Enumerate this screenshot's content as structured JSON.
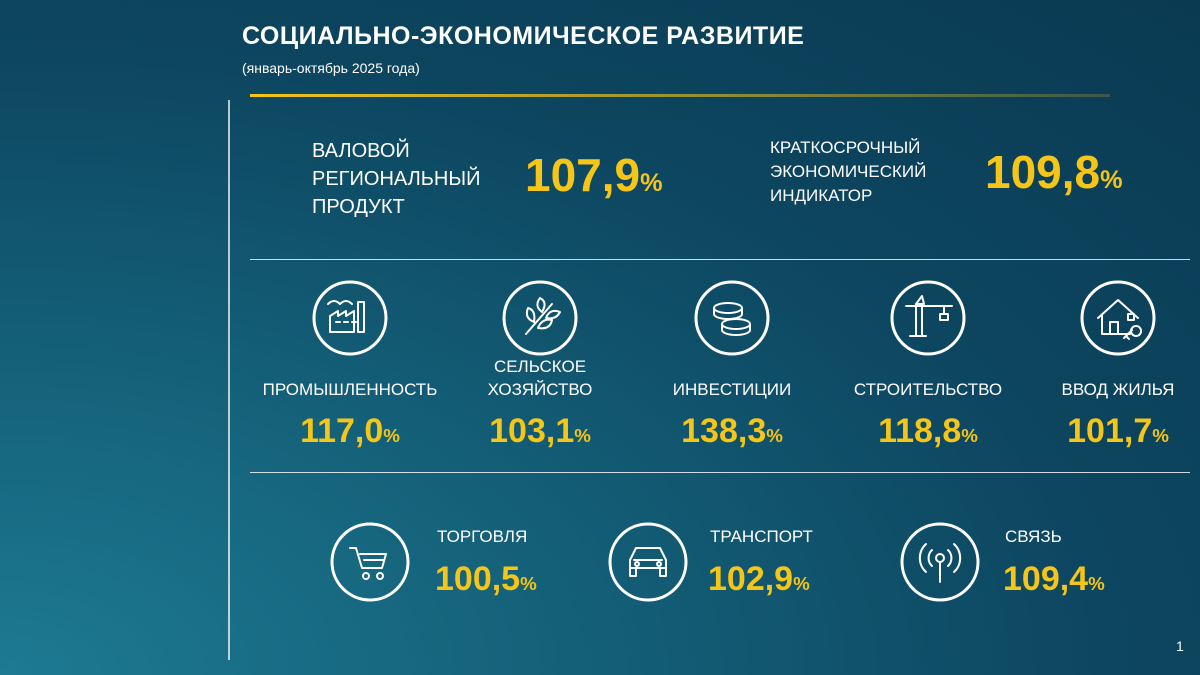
{
  "header": {
    "title": "СОЦИАЛЬНО-ЭКОНОМИЧЕСКОЕ РАЗВИТИЕ",
    "subtitle": "(январь-октябрь 2025 года)"
  },
  "main": [
    {
      "label": [
        "ВАЛОВОЙ",
        "РЕГИОНАЛЬНЫЙ",
        "ПРОДУКТ"
      ],
      "value": "107,9",
      "unit": "%"
    },
    {
      "label": [
        "КРАТКОСРОЧНЫЙ",
        "ЭКОНОМИЧЕСКИЙ",
        "ИНДИКАТОР"
      ],
      "value": "109,8",
      "unit": "%"
    }
  ],
  "sectors": [
    {
      "label": [
        "ПРОМЫШЛЕННОСТЬ"
      ],
      "value": "117,0",
      "unit": "%"
    },
    {
      "label": [
        "СЕЛЬСКОЕ",
        "ХОЗЯЙСТВО"
      ],
      "value": "103,1",
      "unit": "%"
    },
    {
      "label": [
        "ИНВЕСТИЦИИ"
      ],
      "value": "138,3",
      "unit": "%"
    },
    {
      "label": [
        "СТРОИТЕЛЬСТВО"
      ],
      "value": "118,8",
      "unit": "%"
    },
    {
      "label": [
        "ВВОД ЖИЛЬЯ"
      ],
      "value": "101,7",
      "unit": "%"
    }
  ],
  "services": [
    {
      "label": [
        "ТОРГОВЛЯ"
      ],
      "value": "100,5",
      "unit": "%"
    },
    {
      "label": [
        "ТРАНСПОРТ"
      ],
      "value": "102,9",
      "unit": "%"
    },
    {
      "label": [
        "СВЯЗЬ"
      ],
      "value": "109,4",
      "unit": "%"
    }
  ],
  "page_number": "1"
}
